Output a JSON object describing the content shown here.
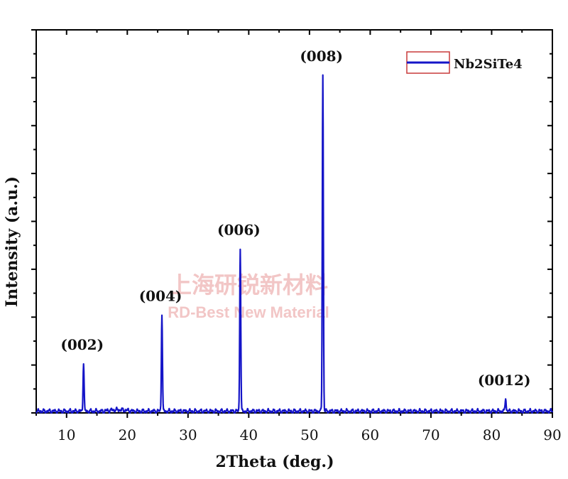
{
  "chart_data": {
    "type": "line",
    "title": "",
    "xlabel": "2Theta (deg.)",
    "ylabel": "Intensity (a.u.)",
    "xlim": [
      5,
      90
    ],
    "ylim": [
      0,
      1.0
    ],
    "x_ticks": [
      "10",
      "20",
      "30",
      "40",
      "50",
      "60",
      "70",
      "80",
      "90"
    ],
    "legend": {
      "position": "top-right",
      "entries": [
        "Nb2SiTe4"
      ]
    },
    "series": [
      {
        "name": "Nb2SiTe4",
        "color": "#1515c8",
        "baseline": 0.005,
        "peaks": [
          {
            "x": 12.8,
            "y": 0.145,
            "label": "(002)"
          },
          {
            "x": 25.7,
            "y": 0.29,
            "label": "(004)"
          },
          {
            "x": 38.6,
            "y": 0.485,
            "label": "(006)"
          },
          {
            "x": 52.2,
            "y": 1.0,
            "label": "(008)"
          },
          {
            "x": 82.3,
            "y": 0.04,
            "label": "(0012)"
          }
        ]
      }
    ],
    "grid": false
  },
  "watermark": {
    "line1": "上海研锐新材料",
    "line2": "RD-Best New Material"
  }
}
